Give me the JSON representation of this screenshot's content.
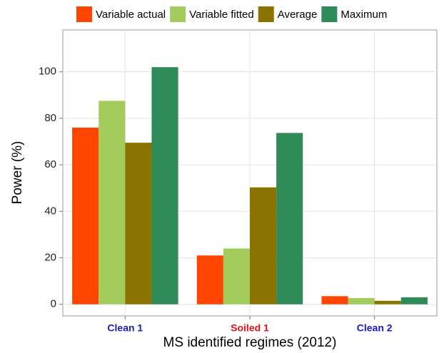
{
  "chart_data": {
    "type": "bar",
    "x_label": "MS identified regimes (2012)",
    "y_label": "Power (%)",
    "categories": [
      "Clean 1",
      "Soiled 1",
      "Clean 2"
    ],
    "category_colors": [
      "#1a1ad0",
      "#e0101a",
      "#1a1ad0"
    ],
    "series": [
      {
        "name": "Variable actual",
        "color": "#ff4500",
        "values": [
          76,
          21,
          3.5
        ]
      },
      {
        "name": "Variable fitted",
        "color": "#a3cc5c",
        "values": [
          87.5,
          24,
          2.7
        ]
      },
      {
        "name": "Average",
        "color": "#8b7300",
        "values": [
          69.5,
          50.3,
          1.5
        ]
      },
      {
        "name": "Maximum",
        "color": "#2e8b57",
        "values": [
          102,
          73.7,
          3
        ]
      }
    ],
    "ylim": [
      -5,
      118
    ],
    "yticks": [
      0,
      20,
      40,
      60,
      80,
      100
    ],
    "grid": true,
    "legend": "top"
  }
}
